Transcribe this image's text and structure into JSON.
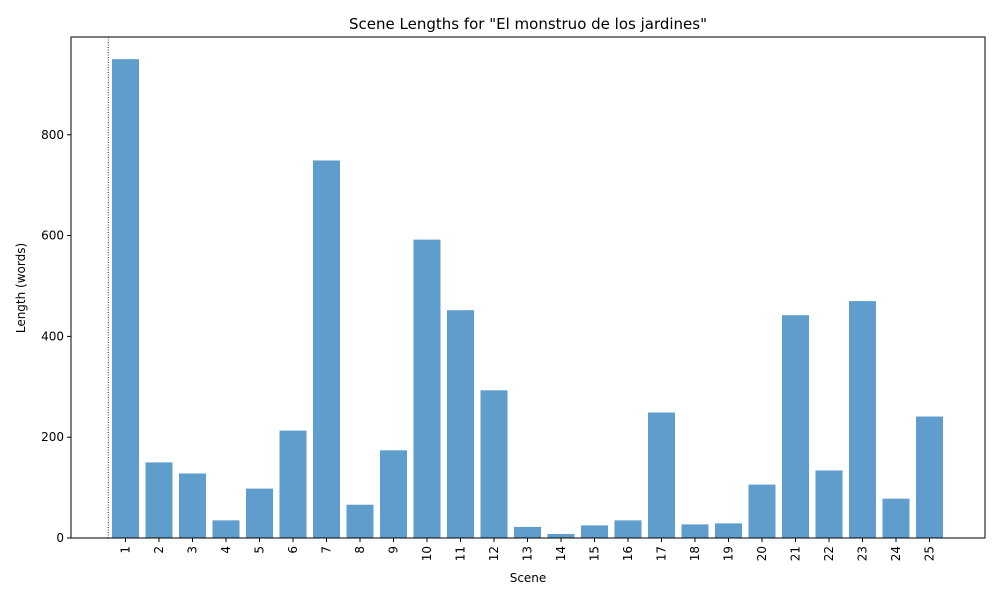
{
  "chart_data": {
    "type": "bar",
    "title": "Scene Lengths for \"El monstruo de los jardines\"",
    "xlabel": "Scene",
    "ylabel": "Length (words)",
    "categories": [
      "1",
      "2",
      "3",
      "4",
      "5",
      "6",
      "7",
      "8",
      "9",
      "10",
      "11",
      "12",
      "13",
      "14",
      "15",
      "16",
      "17",
      "18",
      "19",
      "20",
      "21",
      "22",
      "23",
      "24",
      "25"
    ],
    "values": [
      950,
      150,
      128,
      35,
      98,
      213,
      749,
      66,
      174,
      592,
      452,
      293,
      22,
      8,
      25,
      35,
      249,
      27,
      29,
      106,
      442,
      134,
      470,
      78,
      241
    ],
    "ylim": [
      0,
      994
    ],
    "yticks": [
      0,
      200,
      400,
      600,
      800
    ],
    "bar_color": "#5f9ecc",
    "grid": false,
    "marker_line": {
      "style": "dotted",
      "color": "#000000"
    }
  }
}
